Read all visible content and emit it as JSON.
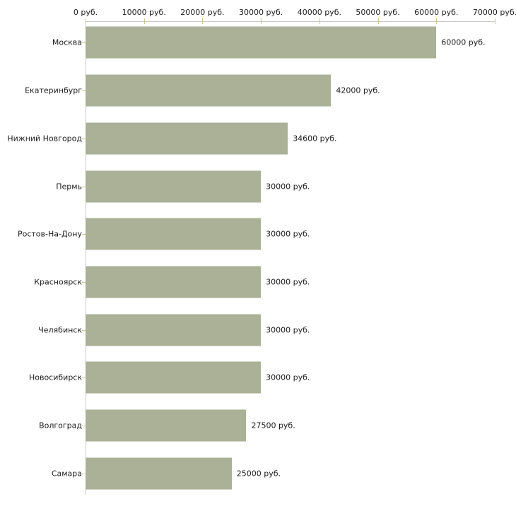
{
  "chart_data": {
    "type": "bar",
    "orientation": "horizontal",
    "title": "",
    "categories": [
      "Москва",
      "Екатеринбург",
      "Нижний Новгород",
      "Пермь",
      "Ростов-На-Дону",
      "Красноярск",
      "Челябинск",
      "Новосибирск",
      "Волгоград",
      "Самара"
    ],
    "values": [
      60000,
      42000,
      34600,
      30000,
      30000,
      30000,
      30000,
      30000,
      27500,
      25000
    ],
    "value_labels": [
      "60000 руб.",
      "42000 руб.",
      "34600 руб.",
      "30000 руб.",
      "30000 руб.",
      "30000 руб.",
      "30000 руб.",
      "30000 руб.",
      "27500 руб.",
      "25000 руб."
    ],
    "x_tick_values": [
      0,
      10000,
      20000,
      30000,
      40000,
      50000,
      60000,
      70000
    ],
    "x_tick_labels": [
      "0 руб.",
      "10000 руб.",
      "20000 руб.",
      "30000 руб.",
      "40000 руб.",
      "50000 руб.",
      "60000 руб.",
      "70000 руб."
    ],
    "xlim": [
      0,
      70000
    ],
    "grid": false,
    "legend": null,
    "colors": {
      "bar": "#aab197",
      "tick": "#c8c896",
      "axis_line": "#c8c8c8",
      "text": "#1c1c1c",
      "background": "#ffffff"
    }
  }
}
